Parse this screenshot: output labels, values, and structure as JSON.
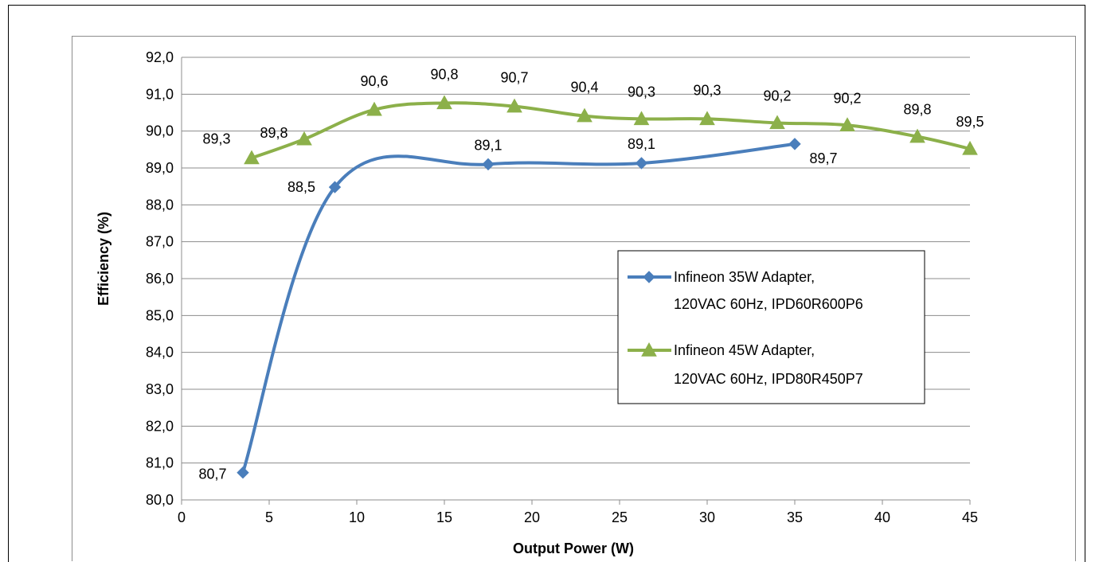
{
  "chart_data": {
    "type": "line",
    "title": "",
    "xlabel": "Output Power (W)",
    "ylabel": "Efficiency (%)",
    "xlim": [
      0,
      45
    ],
    "ylim": [
      80,
      92
    ],
    "x_ticks": [
      "0",
      "5",
      "10",
      "15",
      "20",
      "25",
      "30",
      "35",
      "40",
      "45"
    ],
    "y_ticks": [
      "80,0",
      "81,0",
      "82,0",
      "83,0",
      "84,0",
      "85,0",
      "86,0",
      "87,0",
      "88,0",
      "89,0",
      "90,0",
      "91,0",
      "92,0"
    ],
    "grid": "horizontal",
    "legend_position": "right",
    "series": [
      {
        "name_lines": [
          "Infineon 35W Adapter,",
          "120VAC 60Hz, IPD60R600P6"
        ],
        "color": "#4a7ebb",
        "marker": "diamond",
        "x": [
          3.5,
          8.75,
          17.5,
          26.25,
          35
        ],
        "y": [
          80.74,
          88.48,
          89.1,
          89.13,
          89.65
        ],
        "labels": [
          "80,7",
          "88,5",
          "89,1",
          "89,1",
          "89,7"
        ]
      },
      {
        "name_lines": [
          "Infineon 45W Adapter,",
          "120VAC 60Hz, IPD80R450P7"
        ],
        "color": "#8cb04a",
        "marker": "triangle",
        "x": [
          4,
          7,
          11,
          15,
          19,
          23,
          26.25,
          30,
          34,
          38,
          42,
          45
        ],
        "y": [
          89.27,
          89.78,
          90.58,
          90.76,
          90.67,
          90.41,
          90.33,
          90.33,
          90.22,
          90.16,
          89.85,
          89.52
        ],
        "labels": [
          "89,3",
          "89,8",
          "90,6",
          "90,8",
          "90,7",
          "90,4",
          "90,3",
          "90,3",
          "90,2",
          "90,2",
          "89,8",
          "89,5"
        ]
      }
    ]
  }
}
